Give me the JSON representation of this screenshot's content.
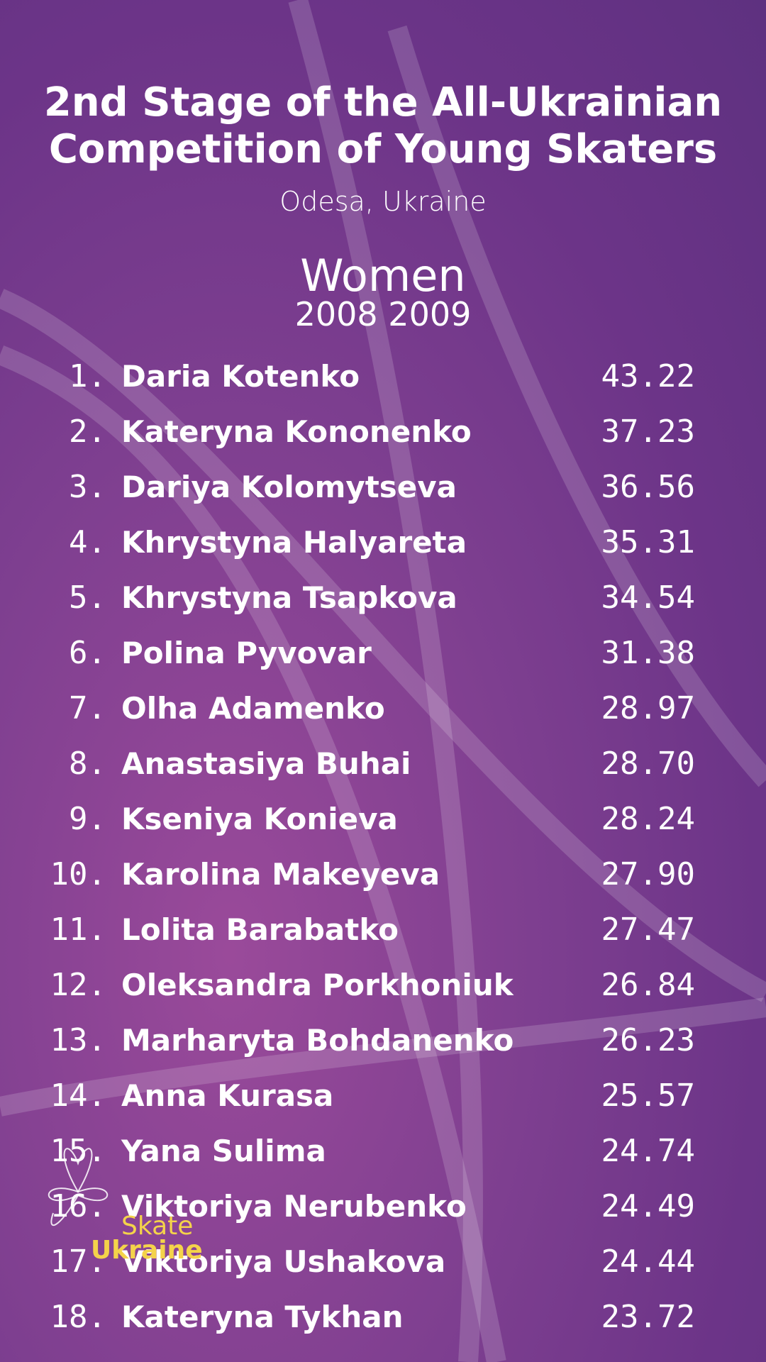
{
  "header": {
    "title": [
      "2nd Stage of the All-Ukrainian",
      "Competition of Young Skaters"
    ],
    "location": "Odesa, Ukraine",
    "category": "Women",
    "years": "2008 2009"
  },
  "table": {
    "rows": [
      [
        "1.",
        "Daria Kotenko",
        "43.22"
      ],
      [
        "2.",
        "Kateryna Kononenko",
        "37.23"
      ],
      [
        "3.",
        "Dariya Kolomytseva",
        "36.56"
      ],
      [
        "4.",
        "Khrystyna Halyareta",
        "35.31"
      ],
      [
        "5.",
        "Khrystyna Tsapkova",
        "34.54"
      ],
      [
        "6.",
        "Polina Pyvovar",
        "31.38"
      ],
      [
        "7.",
        "Olha Adamenko",
        "28.97"
      ],
      [
        "8.",
        "Anastasiya Buhai",
        "28.70"
      ],
      [
        "9.",
        "Kseniya Konieva",
        "28.24"
      ],
      [
        "10.",
        "Karolina Makeyeva",
        "27.90"
      ],
      [
        "11.",
        "Lolita Barabatko",
        "27.47"
      ],
      [
        "12.",
        "Oleksandra Porkhoniuk",
        "26.84"
      ],
      [
        "13.",
        "Marharyta Bohdanenko",
        "26.23"
      ],
      [
        "14.",
        "Anna Kurasa",
        "25.57"
      ],
      [
        "15.",
        "Yana Sulima",
        "24.74"
      ],
      [
        "16.",
        "Viktoriya Nerubenko",
        "24.49"
      ],
      [
        "17.",
        "Viktoriya Ushakova",
        "24.44"
      ],
      [
        "18.",
        "Kateryna Tykhan",
        "23.72"
      ]
    ]
  },
  "logo": {
    "line1": "Skate",
    "line2": "Ukraine"
  }
}
